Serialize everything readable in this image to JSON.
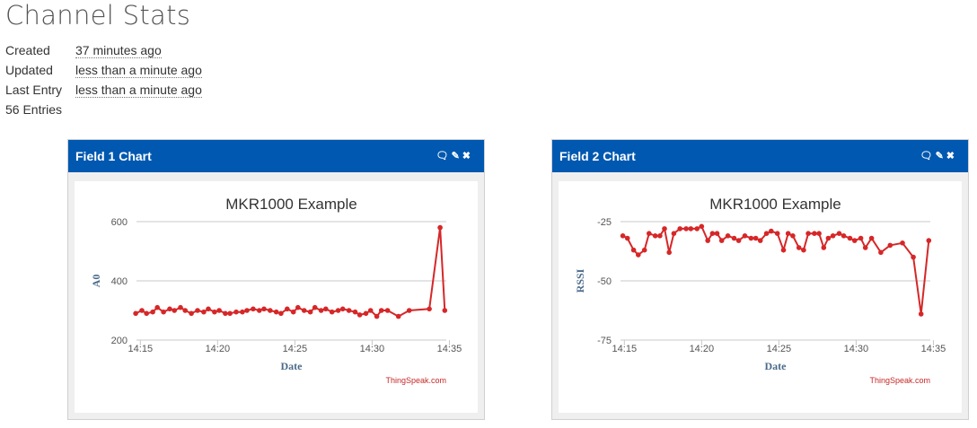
{
  "page": {
    "title": "Channel Stats",
    "stats": [
      {
        "label": "Created",
        "value": "37 minutes ago"
      },
      {
        "label": "Updated",
        "value": "less than a minute ago"
      },
      {
        "label": "Last Entry",
        "value": "less than a minute ago"
      },
      {
        "label": "56 Entries",
        "value": ""
      }
    ]
  },
  "widgets": [
    {
      "title": "Field 1 Chart",
      "icons": [
        "comment-icon",
        "pencil-icon",
        "close-icon"
      ]
    },
    {
      "title": "Field 2 Chart",
      "icons": [
        "comment-icon",
        "pencil-icon",
        "close-icon"
      ]
    }
  ],
  "colors": {
    "header": "#0058b0",
    "line": "#d62728",
    "credit": "#c62828"
  },
  "chart_data": [
    {
      "type": "line",
      "title": "MKR1000 Example",
      "xlabel": "Date",
      "ylabel": "A0",
      "credit": "ThingSpeak.com",
      "xticks": [
        "14:15",
        "14:20",
        "14:25",
        "14:30",
        "14:35"
      ],
      "yticks": [
        "600",
        "400",
        "200"
      ],
      "ylim": [
        200,
        600
      ],
      "xlim_minutes": [
        14.75,
        34.8
      ],
      "grid": true,
      "series": [
        {
          "x": [
            14.7,
            15.1,
            15.4,
            15.8,
            16.1,
            16.5,
            16.9,
            17.2,
            17.6,
            17.9,
            18.3,
            18.7,
            19.1,
            19.4,
            19.8,
            20.1,
            20.5,
            20.8,
            21.2,
            21.6,
            21.9,
            22.3,
            22.7,
            23.0,
            23.4,
            23.8,
            24.1,
            24.5,
            24.9,
            25.2,
            25.6,
            26.0,
            26.3,
            26.7,
            27.0,
            27.4,
            27.8,
            28.1,
            28.5,
            28.9,
            29.2,
            29.6,
            29.9,
            30.3,
            30.6,
            31.0,
            31.7,
            32.4,
            33.7,
            34.4,
            34.7
          ],
          "y": [
            290,
            300,
            290,
            295,
            310,
            295,
            305,
            300,
            310,
            300,
            290,
            300,
            295,
            305,
            295,
            300,
            290,
            290,
            295,
            295,
            300,
            305,
            300,
            305,
            300,
            295,
            290,
            305,
            295,
            310,
            300,
            295,
            310,
            300,
            305,
            295,
            300,
            305,
            300,
            295,
            285,
            290,
            300,
            280,
            300,
            300,
            280,
            300,
            305,
            580,
            300
          ]
        }
      ]
    },
    {
      "type": "line",
      "title": "MKR1000 Example",
      "xlabel": "Date",
      "ylabel": "RSSI",
      "credit": "ThingSpeak.com",
      "xticks": [
        "14:15",
        "14:20",
        "14:25",
        "14:30",
        "14:35"
      ],
      "yticks": [
        "-25",
        "-50",
        "-75"
      ],
      "ylim": [
        -75,
        -25
      ],
      "xlim_minutes": [
        14.75,
        34.8
      ],
      "grid": true,
      "series": [
        {
          "x": [
            14.9,
            15.2,
            15.6,
            15.9,
            16.3,
            16.6,
            17.0,
            17.3,
            17.6,
            17.9,
            18.2,
            18.6,
            19.0,
            19.3,
            19.7,
            20.0,
            20.4,
            20.7,
            21.0,
            21.3,
            21.7,
            22.1,
            22.4,
            22.8,
            23.2,
            23.5,
            23.8,
            24.2,
            24.5,
            24.9,
            25.3,
            25.6,
            25.9,
            26.3,
            26.6,
            26.9,
            27.3,
            27.6,
            27.9,
            28.2,
            28.5,
            28.9,
            29.2,
            29.6,
            29.9,
            30.3,
            30.6,
            31.0,
            31.6,
            32.2,
            33.0,
            33.7,
            34.2,
            34.7
          ],
          "y": [
            -31,
            -32,
            -37,
            -39,
            -37,
            -30,
            -31,
            -31,
            -28,
            -38,
            -30,
            -28,
            -28,
            -28,
            -28,
            -27,
            -33,
            -30,
            -30,
            -33,
            -31,
            -32,
            -33,
            -31,
            -32,
            -32,
            -33,
            -30,
            -29,
            -30,
            -37,
            -30,
            -31,
            -36,
            -37,
            -30,
            -30,
            -30,
            -36,
            -32,
            -31,
            -30,
            -31,
            -32,
            -33,
            -32,
            -36,
            -32,
            -38,
            -35,
            -34,
            -40,
            -64,
            -33
          ]
        }
      ]
    }
  ]
}
